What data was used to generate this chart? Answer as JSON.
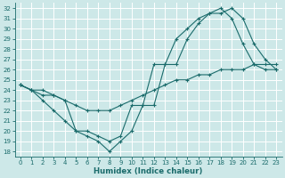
{
  "xlabel": "Humidex (Indice chaleur)",
  "xlim": [
    -0.5,
    23.5
  ],
  "ylim": [
    17.5,
    32.5
  ],
  "xticks": [
    0,
    1,
    2,
    3,
    4,
    5,
    6,
    7,
    8,
    9,
    10,
    11,
    12,
    13,
    14,
    15,
    16,
    17,
    18,
    19,
    20,
    21,
    22,
    23
  ],
  "yticks": [
    18,
    19,
    20,
    21,
    22,
    23,
    24,
    25,
    26,
    27,
    28,
    29,
    30,
    31,
    32
  ],
  "bg_color": "#cde8e8",
  "grid_color": "#ffffff",
  "line_color": "#1a6b6b",
  "s1y": [
    24.5,
    24.0,
    23.0,
    22.0,
    21.0,
    20.0,
    19.5,
    19.0,
    18.0,
    19.0,
    20.0,
    22.5,
    22.5,
    26.5,
    26.5,
    29.0,
    30.5,
    31.5,
    31.5,
    32.0,
    31.0,
    28.5,
    27.0,
    26.0
  ],
  "s2y": [
    24.5,
    24.0,
    23.5,
    23.5,
    23.0,
    20.0,
    20.0,
    19.5,
    19.0,
    19.5,
    22.5,
    22.5,
    26.5,
    26.5,
    29.0,
    30.0,
    31.0,
    31.5,
    32.0,
    31.0,
    28.5,
    26.5,
    26.0,
    26.0
  ],
  "s3y": [
    24.5,
    24.0,
    24.0,
    23.5,
    23.0,
    22.5,
    22.0,
    22.0,
    22.0,
    22.5,
    23.0,
    23.5,
    24.0,
    24.5,
    25.0,
    25.0,
    25.5,
    25.5,
    26.0,
    26.0,
    26.0,
    26.5,
    26.5,
    26.5
  ],
  "tick_fontsize": 5.0,
  "xlabel_fontsize": 6.2
}
